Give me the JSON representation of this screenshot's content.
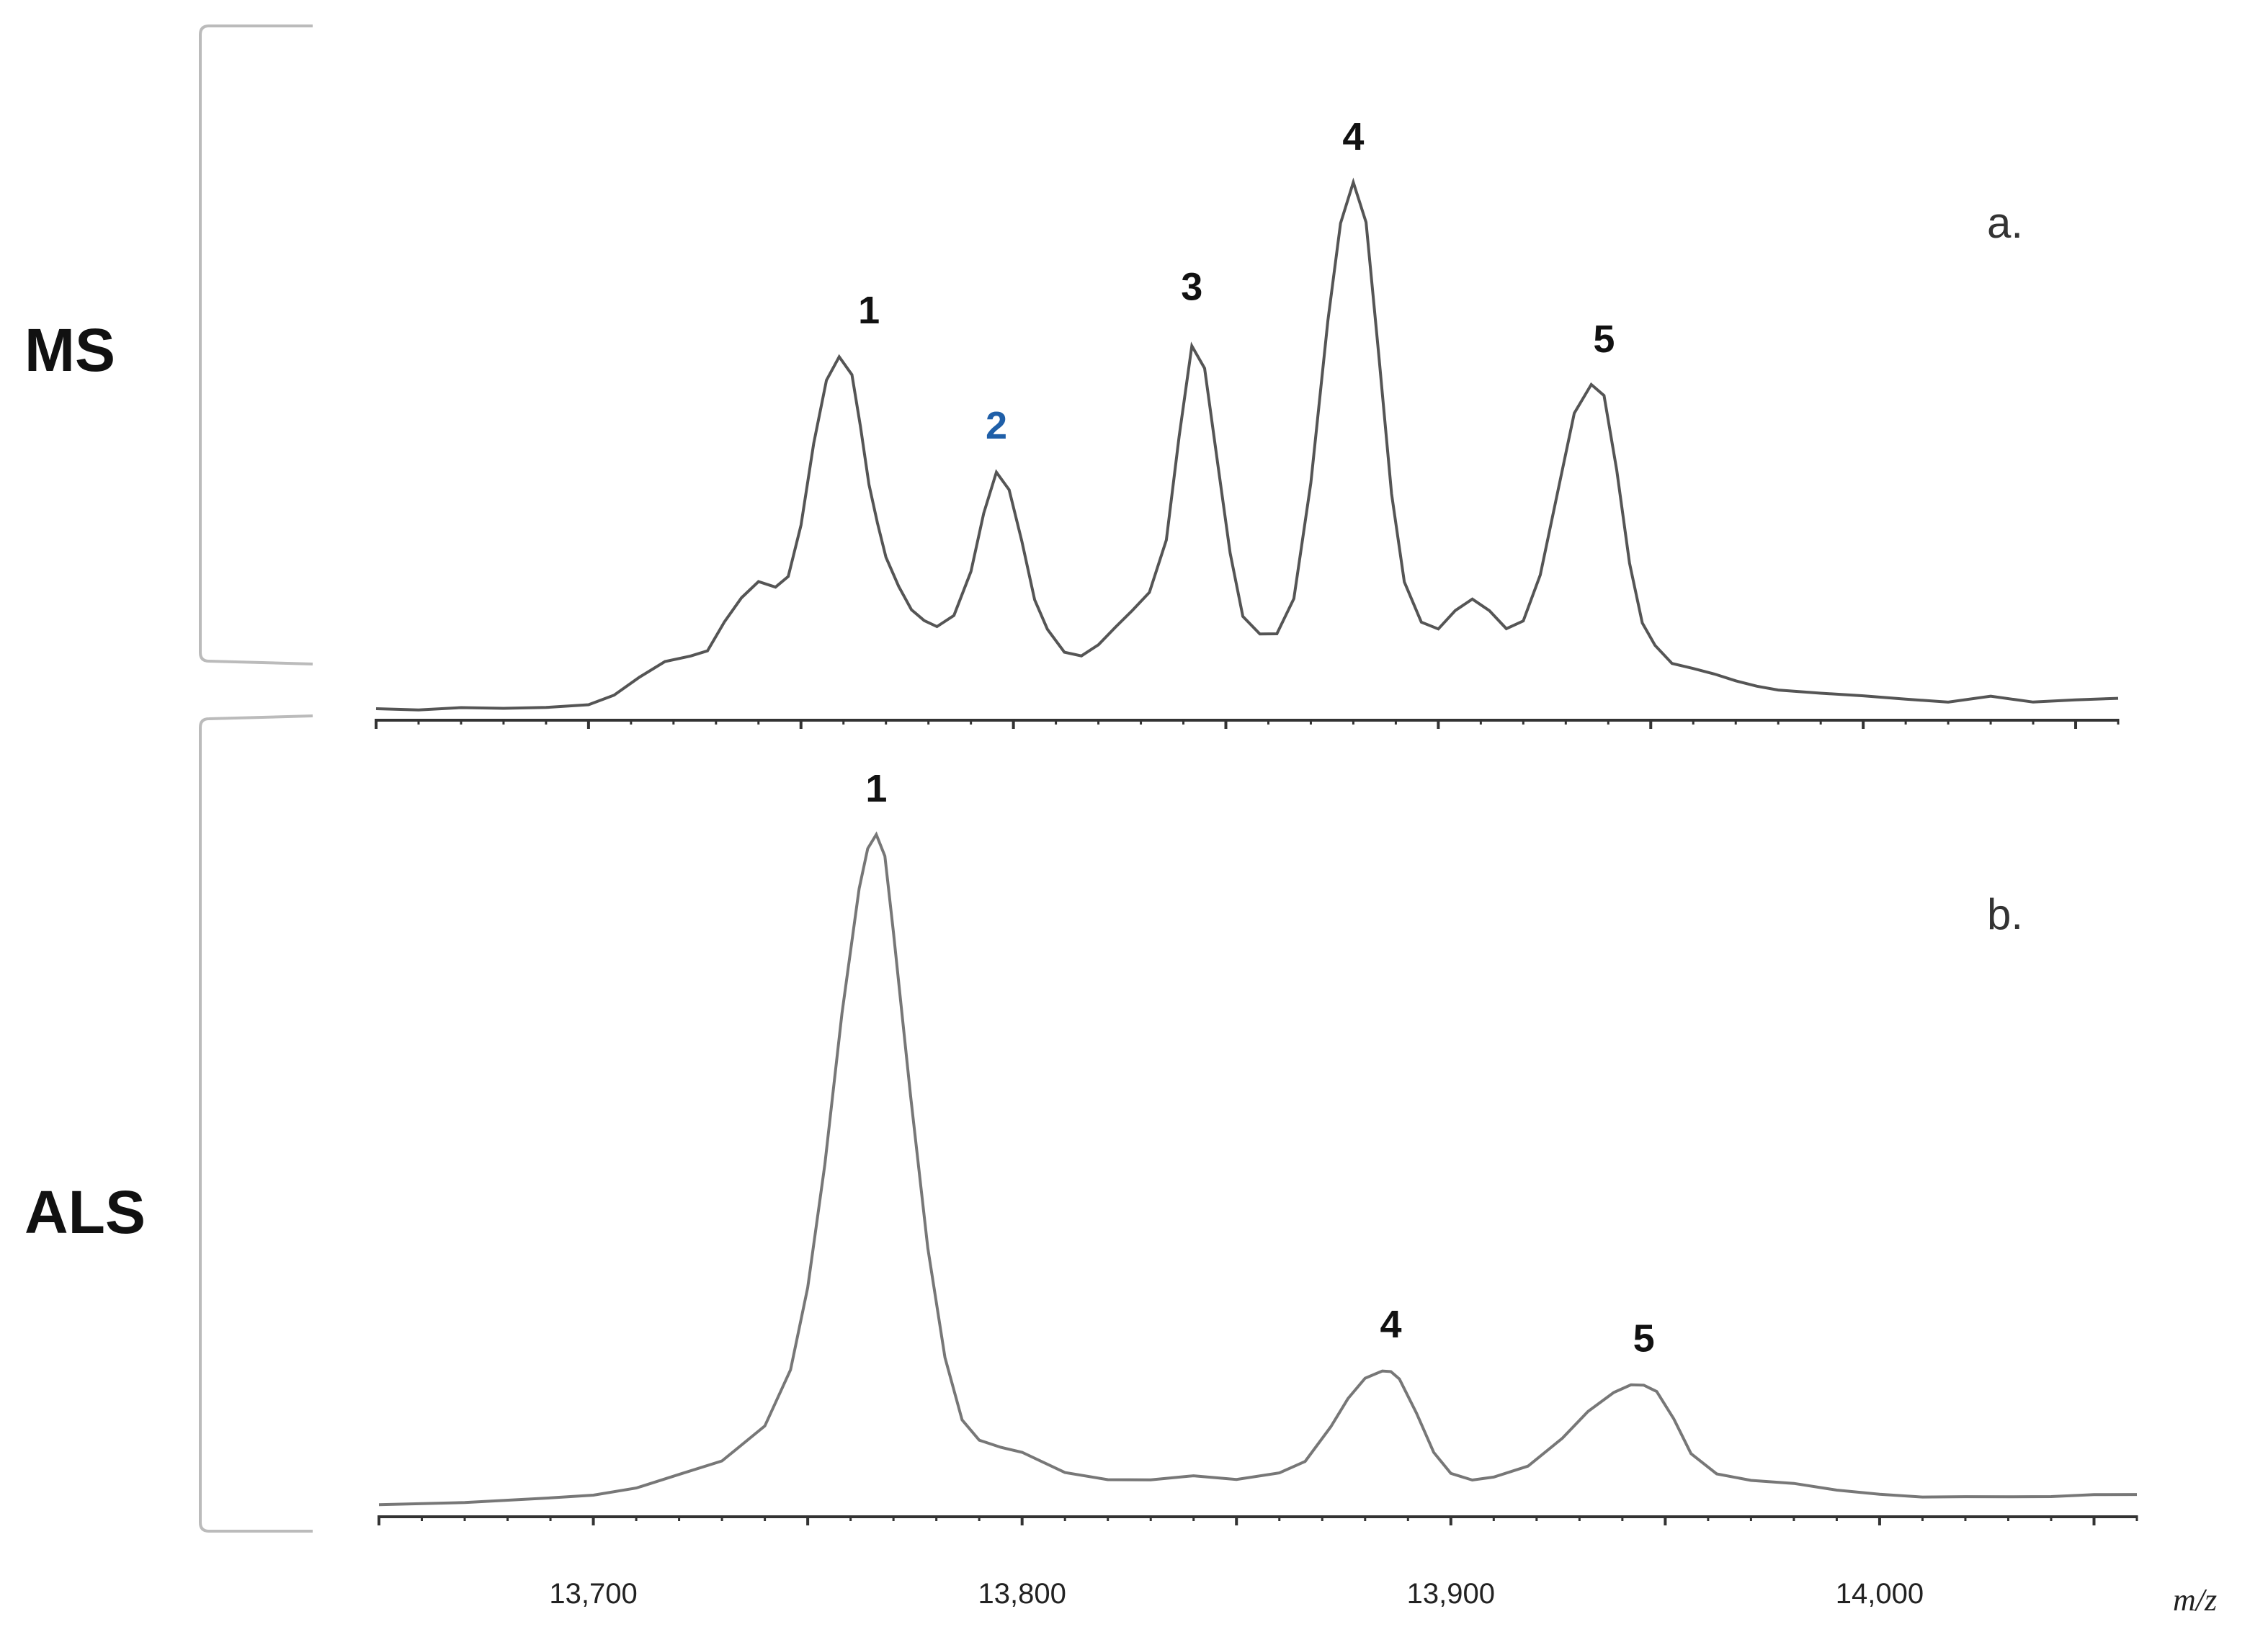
{
  "chart_data": [
    {
      "type": "line",
      "panel": "a.",
      "row_label": "MS",
      "xlabel": "m/z",
      "xlim": [
        13650,
        14060
      ],
      "ylim": [
        0,
        1
      ],
      "grid": false,
      "line_color": "#555555",
      "peaks": [
        {
          "label": "1",
          "x": 13766,
          "y": 0.62,
          "color": "#111111"
        },
        {
          "label": "2",
          "x": 13796,
          "y": 0.42,
          "color": "#1f5fa8"
        },
        {
          "label": "3",
          "x": 13842,
          "y": 0.66,
          "color": "#111111"
        },
        {
          "label": "4",
          "x": 13880,
          "y": 0.92,
          "color": "#111111"
        },
        {
          "label": "5",
          "x": 13939,
          "y": 0.57,
          "color": "#111111"
        }
      ],
      "x": [
        13650,
        13660,
        13670,
        13680,
        13690,
        13700,
        13706,
        13712,
        13718,
        13724,
        13728,
        13732,
        13736,
        13740,
        13744,
        13747,
        13750,
        13753,
        13756,
        13759,
        13762,
        13764,
        13766,
        13768,
        13770,
        13773,
        13776,
        13779,
        13782,
        13786,
        13790,
        13793,
        13796,
        13799,
        13802,
        13805,
        13808,
        13812,
        13816,
        13820,
        13824,
        13828,
        13832,
        13836,
        13839,
        13842,
        13845,
        13848,
        13851,
        13854,
        13858,
        13862,
        13866,
        13870,
        13874,
        13877,
        13880,
        13883,
        13886,
        13889,
        13892,
        13896,
        13900,
        13904,
        13908,
        13912,
        13916,
        13920,
        13924,
        13928,
        13932,
        13936,
        13939,
        13942,
        13945,
        13948,
        13951,
        13955,
        13960,
        13965,
        13970,
        13975,
        13980,
        13990,
        14000,
        14010,
        14020,
        14030,
        14040,
        14050,
        14060
      ],
      "y": [
        0.01,
        0.01,
        0.012,
        0.012,
        0.013,
        0.018,
        0.035,
        0.065,
        0.09,
        0.1,
        0.11,
        0.16,
        0.2,
        0.23,
        0.22,
        0.24,
        0.33,
        0.47,
        0.58,
        0.62,
        0.59,
        0.5,
        0.4,
        0.33,
        0.27,
        0.22,
        0.18,
        0.16,
        0.15,
        0.17,
        0.25,
        0.35,
        0.42,
        0.39,
        0.3,
        0.2,
        0.15,
        0.11,
        0.1,
        0.12,
        0.15,
        0.18,
        0.21,
        0.3,
        0.48,
        0.64,
        0.6,
        0.44,
        0.28,
        0.17,
        0.14,
        0.14,
        0.2,
        0.4,
        0.68,
        0.85,
        0.92,
        0.85,
        0.62,
        0.38,
        0.23,
        0.16,
        0.15,
        0.18,
        0.2,
        0.18,
        0.15,
        0.16,
        0.24,
        0.38,
        0.52,
        0.57,
        0.55,
        0.42,
        0.26,
        0.16,
        0.12,
        0.09,
        0.08,
        0.07,
        0.06,
        0.05,
        0.04,
        0.035,
        0.03,
        0.025,
        0.02,
        0.03,
        0.02,
        0.025,
        0.03
      ]
    },
    {
      "type": "line",
      "panel": "b.",
      "row_label": "ALS",
      "xlabel": "m/z",
      "xlim": [
        13650,
        14060
      ],
      "ylim": [
        0,
        1
      ],
      "grid": false,
      "line_color": "#777777",
      "peaks": [
        {
          "label": "1",
          "x": 13766,
          "y": 0.98,
          "color": "#111111"
        },
        {
          "label": "4",
          "x": 13886,
          "y": 0.2,
          "color": "#111111"
        },
        {
          "label": "5",
          "x": 13945,
          "y": 0.18,
          "color": "#111111"
        }
      ],
      "x": [
        13650,
        13670,
        13690,
        13700,
        13710,
        13720,
        13730,
        13740,
        13746,
        13750,
        13754,
        13758,
        13762,
        13764,
        13766,
        13768,
        13770,
        13774,
        13778,
        13782,
        13786,
        13790,
        13795,
        13800,
        13810,
        13820,
        13830,
        13840,
        13850,
        13860,
        13866,
        13872,
        13876,
        13880,
        13884,
        13886,
        13888,
        13892,
        13896,
        13900,
        13905,
        13910,
        13918,
        13926,
        13932,
        13938,
        13942,
        13945,
        13948,
        13952,
        13956,
        13962,
        13970,
        13980,
        13990,
        14000,
        14010,
        14020,
        14030,
        14040,
        14050,
        14060
      ],
      "y": [
        0.005,
        0.01,
        0.015,
        0.02,
        0.03,
        0.05,
        0.07,
        0.12,
        0.2,
        0.32,
        0.5,
        0.72,
        0.9,
        0.96,
        0.98,
        0.95,
        0.84,
        0.6,
        0.38,
        0.22,
        0.13,
        0.1,
        0.09,
        0.08,
        0.05,
        0.04,
        0.04,
        0.045,
        0.04,
        0.05,
        0.07,
        0.12,
        0.16,
        0.19,
        0.2,
        0.2,
        0.19,
        0.14,
        0.08,
        0.05,
        0.04,
        0.045,
        0.06,
        0.1,
        0.14,
        0.17,
        0.18,
        0.18,
        0.17,
        0.13,
        0.08,
        0.05,
        0.04,
        0.035,
        0.025,
        0.02,
        0.015,
        0.015,
        0.015,
        0.015,
        0.02,
        0.02
      ]
    }
  ],
  "axis": {
    "tick_labels": [
      "13,700",
      "13,800",
      "13,900",
      "14,000"
    ],
    "tick_values": [
      13700,
      13800,
      13900,
      14000
    ],
    "label": "m/z"
  }
}
